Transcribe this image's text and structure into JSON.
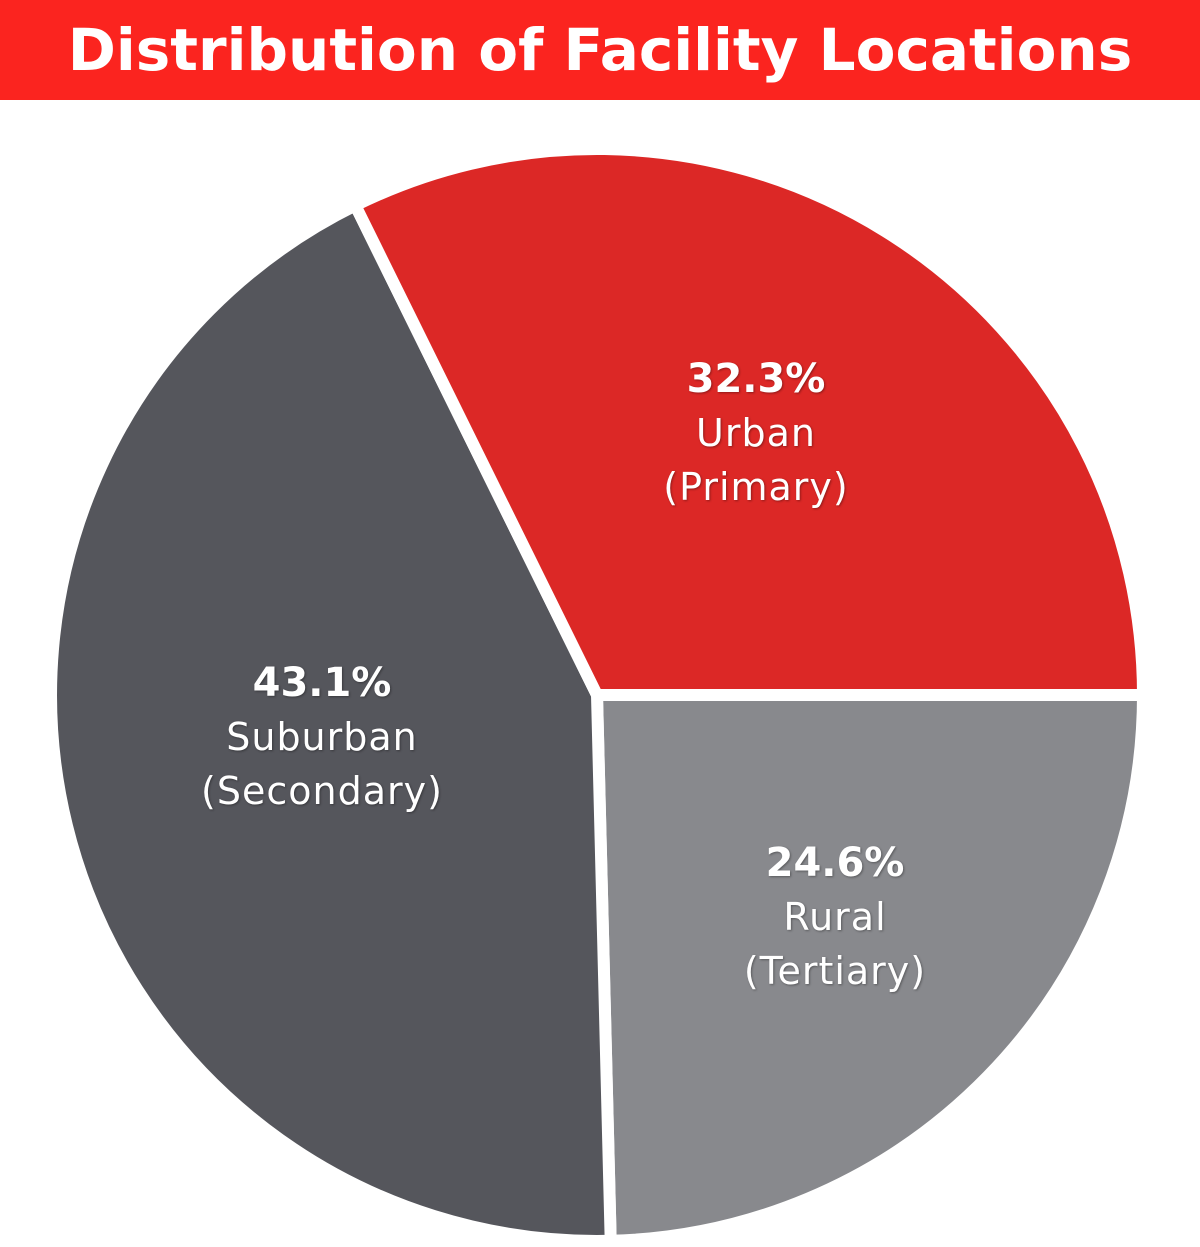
{
  "title": "Distribution of Facility Locations",
  "colors": {
    "header": "#fb241f",
    "urban": "#dc2826",
    "suburban": "#55565c",
    "rural": "#88898d",
    "background": "#ffffff"
  },
  "labels": {
    "urban": {
      "pct": "32.3%",
      "name": "Urban",
      "sub": "(Primary)"
    },
    "suburban": {
      "pct": "43.1%",
      "name": "Suburban",
      "sub": "(Secondary)"
    },
    "rural": {
      "pct": "24.6%",
      "name": "Rural",
      "sub": "(Tertiary)"
    }
  },
  "chart_data": {
    "type": "pie",
    "title": "Distribution of Facility Locations",
    "categories": [
      "Urban (Primary)",
      "Suburban (Secondary)",
      "Rural (Tertiary)"
    ],
    "values": [
      32.3,
      43.1,
      24.6
    ],
    "unit": "%",
    "colors": [
      "#dc2826",
      "#55565c",
      "#88898d"
    ],
    "legend": "none (labels inside slices)"
  }
}
